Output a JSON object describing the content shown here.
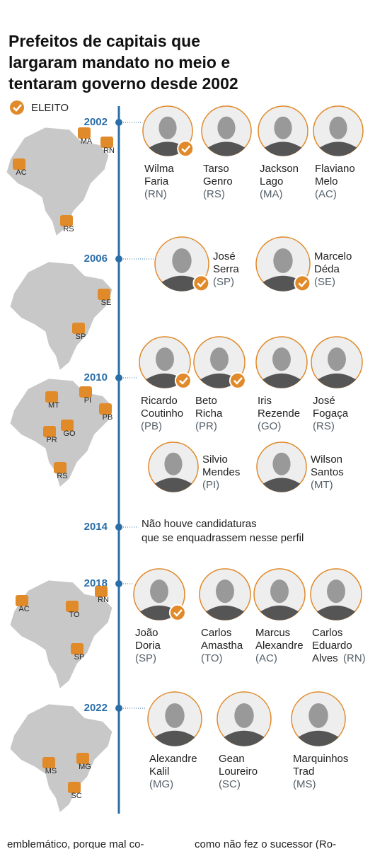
{
  "title": [
    "Prefeitos de capitais que",
    "largaram mandato no meio e",
    "tentaram governo desde 2002"
  ],
  "legend": "ELEITO",
  "sections": [
    {
      "year": "2002",
      "map_labels": [
        "MA",
        "RN",
        "AC",
        "RS"
      ],
      "candidates": [
        {
          "name": [
            "Wilma",
            "Faria"
          ],
          "state": "(RN)",
          "elected": true
        },
        {
          "name": [
            "Tarso",
            "Genro"
          ],
          "state": "(RS)",
          "elected": false
        },
        {
          "name": [
            "Jackson",
            "Lago"
          ],
          "state": "(MA)",
          "elected": false
        },
        {
          "name": [
            "Flaviano",
            "Melo"
          ],
          "state": "(AC)",
          "elected": false
        }
      ]
    },
    {
      "year": "2006",
      "map_labels": [
        "SE",
        "SP"
      ],
      "candidates": [
        {
          "name": [
            "José",
            "Serra"
          ],
          "state": "(SP)",
          "elected": true
        },
        {
          "name": [
            "Marcelo",
            "Déda"
          ],
          "state": "(SE)",
          "elected": true
        }
      ]
    },
    {
      "year": "2010",
      "map_labels": [
        "PI",
        "MT",
        "PB",
        "GO",
        "PR",
        "RS"
      ],
      "candidates": [
        {
          "name": [
            "Ricardo",
            "Coutinho"
          ],
          "state": "(PB)",
          "elected": true
        },
        {
          "name": [
            "Beto",
            "Richa"
          ],
          "state": "(PR)",
          "elected": true
        },
        {
          "name": [
            "Iris",
            "Rezende"
          ],
          "state": "(GO)",
          "elected": false
        },
        {
          "name": [
            "José",
            "Fogaça"
          ],
          "state": "(RS)",
          "elected": false
        },
        {
          "name": [
            "Silvio",
            "Mendes"
          ],
          "state": "(PI)",
          "elected": false
        },
        {
          "name": [
            "Wilson",
            "Santos"
          ],
          "state": "(MT)",
          "elected": false
        }
      ]
    },
    {
      "year": "2014",
      "note": [
        "Não houve candidaturas",
        "que se enquadrassem nesse perfil"
      ]
    },
    {
      "year": "2018",
      "map_labels": [
        "RN",
        "AC",
        "TO",
        "SP"
      ],
      "candidates": [
        {
          "name": [
            "João",
            "Doria"
          ],
          "state": "(SP)",
          "elected": true
        },
        {
          "name": [
            "Carlos",
            "Amastha"
          ],
          "state": "(TO)",
          "elected": false
        },
        {
          "name": [
            "Marcus",
            "Alexandre"
          ],
          "state": "(AC)",
          "elected": false
        },
        {
          "name": [
            "Carlos",
            "Eduardo",
            "Alves"
          ],
          "state": "(RN)",
          "elected": false
        }
      ]
    },
    {
      "year": "2022",
      "map_labels": [
        "MS",
        "MG",
        "SC"
      ],
      "candidates": [
        {
          "name": [
            "Alexandre",
            "Kalil"
          ],
          "state": "(MG)",
          "elected": false
        },
        {
          "name": [
            "Gean",
            "Loureiro"
          ],
          "state": "(SC)",
          "elected": false
        },
        {
          "name": [
            "Marquinhos",
            "Trad"
          ],
          "state": "(MS)",
          "elected": false
        }
      ]
    }
  ],
  "footer": [
    "emblemático, porque mal co-",
    "como não fez o sucessor (Ro-"
  ]
}
